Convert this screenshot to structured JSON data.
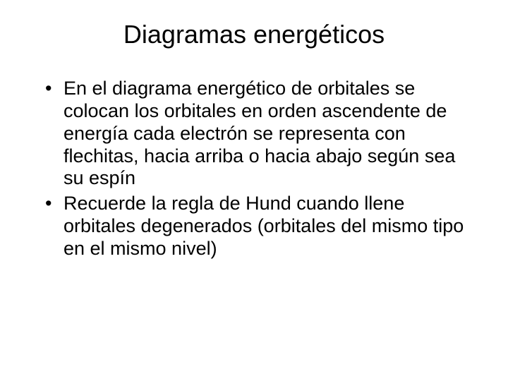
{
  "slide": {
    "title": "Diagramas energéticos",
    "title_fontsize": 36,
    "title_color": "#000000",
    "body_fontsize": 27,
    "body_color": "#000000",
    "line_height": 1.18,
    "background_color": "#ffffff",
    "bullets": [
      "En el diagrama energético de orbitales se colocan los orbitales en orden ascendente de energía  cada electrón se representa con flechitas, hacia arriba o hacia abajo según sea su espín",
      "Recuerde la regla de Hund cuando llene orbitales degenerados (orbitales del mismo tipo en el mismo nivel)"
    ]
  }
}
